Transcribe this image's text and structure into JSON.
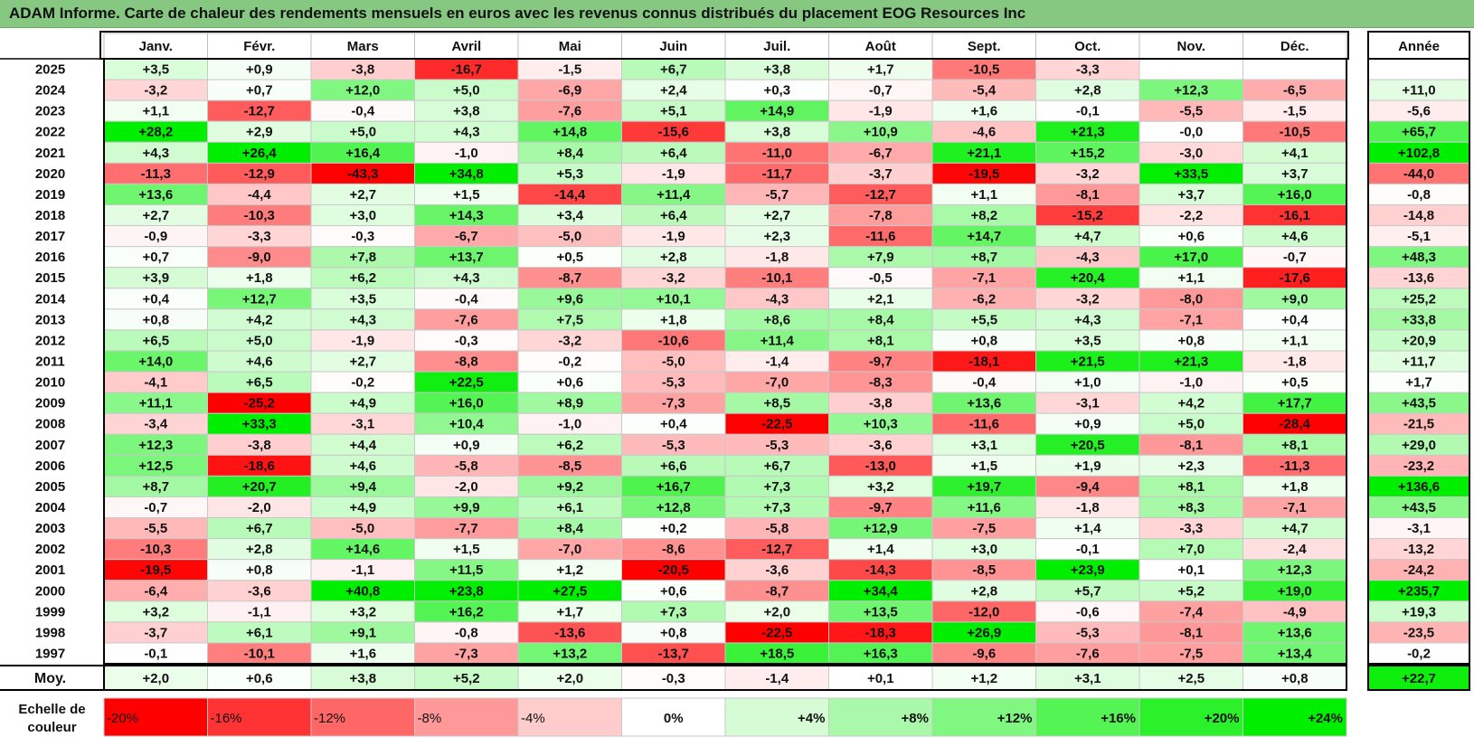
{
  "title": "ADAM Informe. Carte de chaleur des rendements mensuels en euros avec les revenus connus distribués du placement EOG Resources Inc",
  "chart_data": {
    "type": "heatmap",
    "title": "ADAM Informe. Carte de chaleur des rendements mensuels en euros avec les revenus connus distribués du placement EOG Resources Inc",
    "columns": [
      "Janv.",
      "Févr.",
      "Mars",
      "Avril",
      "Mai",
      "Juin",
      "Juil.",
      "Août",
      "Sept.",
      "Oct.",
      "Nov.",
      "Déc."
    ],
    "year_column_label": "Année",
    "average_row_label": "Moy.",
    "scale_label": [
      "Echelle de",
      "couleur"
    ],
    "rows": [
      {
        "year": "2025",
        "values": [
          "+3,5",
          "+0,9",
          "-3,8",
          "-16,7",
          "-1,5",
          "+6,7",
          "+3,8",
          "+1,7",
          "-10,5",
          "-3,3",
          "",
          ""
        ],
        "annual": ""
      },
      {
        "year": "2024",
        "values": [
          "-3,2",
          "+0,7",
          "+12,0",
          "+5,0",
          "-6,9",
          "+2,4",
          "+0,3",
          "-0,7",
          "-5,4",
          "+2,8",
          "+12,3",
          "-6,5"
        ],
        "annual": "+11,0"
      },
      {
        "year": "2023",
        "values": [
          "+1,1",
          "-12,7",
          "-0,4",
          "+3,8",
          "-7,6",
          "+5,1",
          "+14,9",
          "-1,9",
          "+1,6",
          "-0,1",
          "-5,5",
          "-1,5"
        ],
        "annual": "-5,6"
      },
      {
        "year": "2022",
        "values": [
          "+28,2",
          "+2,9",
          "+5,0",
          "+4,3",
          "+14,8",
          "-15,6",
          "+3,8",
          "+10,9",
          "-4,6",
          "+21,3",
          "-0,0",
          "-10,5"
        ],
        "annual": "+65,7"
      },
      {
        "year": "2021",
        "values": [
          "+4,3",
          "+26,4",
          "+16,4",
          "-1,0",
          "+8,4",
          "+6,4",
          "-11,0",
          "-6,7",
          "+21,1",
          "+15,2",
          "-3,0",
          "+4,1"
        ],
        "annual": "+102,8"
      },
      {
        "year": "2020",
        "values": [
          "-11,3",
          "-12,9",
          "-43,3",
          "+34,8",
          "+5,3",
          "-1,9",
          "-11,7",
          "-3,7",
          "-19,5",
          "-3,2",
          "+33,5",
          "+3,7"
        ],
        "annual": "-44,0"
      },
      {
        "year": "2019",
        "values": [
          "+13,6",
          "-4,4",
          "+2,7",
          "+1,5",
          "-14,4",
          "+11,4",
          "-5,7",
          "-12,7",
          "+1,1",
          "-8,1",
          "+3,7",
          "+16,0"
        ],
        "annual": "-0,8"
      },
      {
        "year": "2018",
        "values": [
          "+2,7",
          "-10,3",
          "+3,0",
          "+14,3",
          "+3,4",
          "+6,4",
          "+2,7",
          "-7,8",
          "+8,2",
          "-15,2",
          "-2,2",
          "-16,1"
        ],
        "annual": "-14,8"
      },
      {
        "year": "2017",
        "values": [
          "-0,9",
          "-3,3",
          "-0,3",
          "-6,7",
          "-5,0",
          "-1,9",
          "+2,3",
          "-11,6",
          "+14,7",
          "+4,7",
          "+0,6",
          "+4,6"
        ],
        "annual": "-5,1"
      },
      {
        "year": "2016",
        "values": [
          "+0,7",
          "-9,0",
          "+7,8",
          "+13,7",
          "+0,5",
          "+2,8",
          "-1,8",
          "+7,9",
          "+8,7",
          "-4,3",
          "+17,0",
          "-0,7"
        ],
        "annual": "+48,3"
      },
      {
        "year": "2015",
        "values": [
          "+3,9",
          "+1,8",
          "+6,2",
          "+4,3",
          "-8,7",
          "-3,2",
          "-10,1",
          "-0,5",
          "-7,1",
          "+20,4",
          "+1,1",
          "-17,6"
        ],
        "annual": "-13,6"
      },
      {
        "year": "2014",
        "values": [
          "+0,4",
          "+12,7",
          "+3,5",
          "-0,4",
          "+9,6",
          "+10,1",
          "-4,3",
          "+2,1",
          "-6,2",
          "-3,2",
          "-8,0",
          "+9,0"
        ],
        "annual": "+25,2"
      },
      {
        "year": "2013",
        "values": [
          "+0,8",
          "+4,2",
          "+4,3",
          "-7,6",
          "+7,5",
          "+1,8",
          "+8,6",
          "+8,4",
          "+5,5",
          "+4,3",
          "-7,1",
          "+0,4"
        ],
        "annual": "+33,8"
      },
      {
        "year": "2012",
        "values": [
          "+6,5",
          "+5,0",
          "-1,9",
          "-0,3",
          "-3,2",
          "-10,6",
          "+11,4",
          "+8,1",
          "+0,8",
          "+3,5",
          "+0,8",
          "+1,1"
        ],
        "annual": "+20,9"
      },
      {
        "year": "2011",
        "values": [
          "+14,0",
          "+4,6",
          "+2,7",
          "-8,8",
          "-0,2",
          "-5,0",
          "-1,4",
          "-9,7",
          "-18,1",
          "+21,5",
          "+21,3",
          "-1,8"
        ],
        "annual": "+11,7"
      },
      {
        "year": "2010",
        "values": [
          "-4,1",
          "+6,5",
          "-0,2",
          "+22,5",
          "+0,6",
          "-5,3",
          "-7,0",
          "-8,3",
          "-0,4",
          "+1,0",
          "-1,0",
          "+0,5"
        ],
        "annual": "+1,7"
      },
      {
        "year": "2009",
        "values": [
          "+11,1",
          "-25,2",
          "+4,9",
          "+16,0",
          "+8,9",
          "-7,3",
          "+8,5",
          "-3,8",
          "+13,6",
          "-3,1",
          "+4,2",
          "+17,7"
        ],
        "annual": "+43,5"
      },
      {
        "year": "2008",
        "values": [
          "-3,4",
          "+33,3",
          "-3,1",
          "+10,4",
          "-1,0",
          "+0,4",
          "-22,5",
          "+10,3",
          "-11,6",
          "+0,9",
          "+5,0",
          "-28,4"
        ],
        "annual": "-21,5"
      },
      {
        "year": "2007",
        "values": [
          "+12,3",
          "-3,8",
          "+4,4",
          "+0,9",
          "+6,2",
          "-5,3",
          "-5,3",
          "-3,6",
          "+3,1",
          "+20,5",
          "-8,1",
          "+8,1"
        ],
        "annual": "+29,0"
      },
      {
        "year": "2006",
        "values": [
          "+12,5",
          "-18,6",
          "+4,6",
          "-5,8",
          "-8,5",
          "+6,6",
          "+6,7",
          "-13,0",
          "+1,5",
          "+1,9",
          "+2,3",
          "-11,3"
        ],
        "annual": "-23,2"
      },
      {
        "year": "2005",
        "values": [
          "+8,7",
          "+20,7",
          "+9,4",
          "-2,0",
          "+9,2",
          "+16,7",
          "+7,3",
          "+3,2",
          "+19,7",
          "-9,4",
          "+8,1",
          "+1,8"
        ],
        "annual": "+136,6"
      },
      {
        "year": "2004",
        "values": [
          "-0,7",
          "-2,0",
          "+4,9",
          "+9,9",
          "+6,1",
          "+12,8",
          "+7,3",
          "-9,7",
          "+11,6",
          "-1,8",
          "+8,3",
          "-7,1"
        ],
        "annual": "+43,5"
      },
      {
        "year": "2003",
        "values": [
          "-5,5",
          "+6,7",
          "-5,0",
          "-7,7",
          "+8,4",
          "+0,2",
          "-5,8",
          "+12,9",
          "-7,5",
          "+1,4",
          "-3,3",
          "+4,7"
        ],
        "annual": "-3,1"
      },
      {
        "year": "2002",
        "values": [
          "-10,3",
          "+2,8",
          "+14,6",
          "+1,5",
          "-7,0",
          "-8,6",
          "-12,7",
          "+1,4",
          "+3,0",
          "-0,1",
          "+7,0",
          "-2,4"
        ],
        "annual": "-13,2"
      },
      {
        "year": "2001",
        "values": [
          "-19,5",
          "+0,8",
          "-1,1",
          "+11,5",
          "+1,2",
          "-20,5",
          "-3,6",
          "-14,3",
          "-8,5",
          "+23,9",
          "+0,1",
          "+12,3"
        ],
        "annual": "-24,2"
      },
      {
        "year": "2000",
        "values": [
          "-6,4",
          "-3,6",
          "+40,8",
          "+23,8",
          "+27,5",
          "+0,6",
          "-8,7",
          "+34,4",
          "+2,8",
          "+5,7",
          "+5,2",
          "+19,0"
        ],
        "annual": "+235,7"
      },
      {
        "year": "1999",
        "values": [
          "+3,2",
          "-1,1",
          "+3,2",
          "+16,2",
          "+1,7",
          "+7,3",
          "+2,0",
          "+13,5",
          "-12,0",
          "-0,6",
          "-7,4",
          "-4,9"
        ],
        "annual": "+19,3"
      },
      {
        "year": "1998",
        "values": [
          "-3,7",
          "+6,1",
          "+9,1",
          "-0,8",
          "-13,6",
          "+0,8",
          "-22,5",
          "-18,3",
          "+26,9",
          "-5,3",
          "-8,1",
          "+13,6"
        ],
        "annual": "-23,5"
      },
      {
        "year": "1997",
        "values": [
          "-0,1",
          "-10,1",
          "+1,6",
          "-7,3",
          "+13,2",
          "-13,7",
          "+18,5",
          "+16,3",
          "-9,6",
          "-7,6",
          "-7,5",
          "+13,4"
        ],
        "annual": "-0,2"
      }
    ],
    "averages": [
      "+2,0",
      "+0,6",
      "+3,8",
      "+5,2",
      "+2,0",
      "-0,3",
      "-1,4",
      "+0,1",
      "+1,2",
      "+3,1",
      "+2,5",
      "+0,8"
    ],
    "average_annual": "+22,7",
    "scale": [
      "-20%",
      "-16%",
      "-12%",
      "-8%",
      "-4%",
      "0%",
      "+4%",
      "+8%",
      "+12%",
      "+16%",
      "+20%",
      "+24%"
    ],
    "colors": {
      "red": "#ff0000",
      "white": "#ffffff",
      "green": "#00ee00",
      "title_bar": "#86c781"
    }
  }
}
